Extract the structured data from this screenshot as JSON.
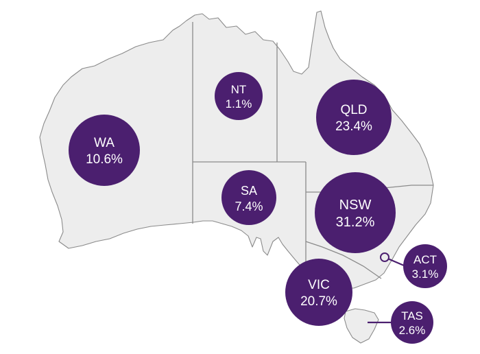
{
  "colors": {
    "bubble": "#4b1f6f",
    "land": "#ededed",
    "border": "#8a8a8a"
  },
  "regions": [
    {
      "id": "wa",
      "code": "WA",
      "pct": "10.6%",
      "value": 10.6
    },
    {
      "id": "nt",
      "code": "NT",
      "pct": "1.1%",
      "value": 1.1
    },
    {
      "id": "qld",
      "code": "QLD",
      "pct": "23.4%",
      "value": 23.4
    },
    {
      "id": "sa",
      "code": "SA",
      "pct": "7.4%",
      "value": 7.4
    },
    {
      "id": "nsw",
      "code": "NSW",
      "pct": "31.2%",
      "value": 31.2
    },
    {
      "id": "act",
      "code": "ACT",
      "pct": "3.1%",
      "value": 3.1
    },
    {
      "id": "vic",
      "code": "VIC",
      "pct": "20.7%",
      "value": 20.7
    },
    {
      "id": "tas",
      "code": "TAS",
      "pct": "2.6%",
      "value": 2.6
    }
  ]
}
